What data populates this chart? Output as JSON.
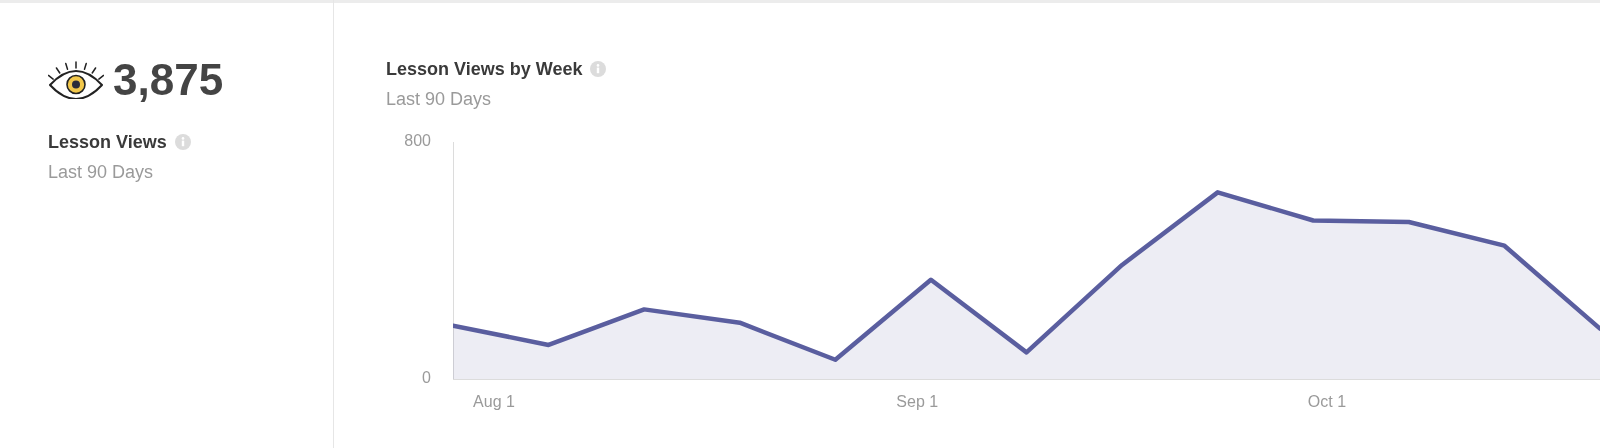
{
  "chart_data": [
    {
      "type": "other",
      "title": "Lesson Views",
      "subtitle": "Last 90 Days",
      "annotations": [
        "3,875"
      ]
    },
    {
      "type": "area",
      "title": "Lesson Views by Week",
      "subtitle": "Last 90 Days",
      "x": [
        "--07-29",
        "--08-05",
        "--08-12",
        "--08-19",
        "--08-26",
        "--09-02",
        "--09-09",
        "--09-16",
        "--09-23",
        "--09-30",
        "--10-07",
        "--10-14",
        "--10-21"
      ],
      "series": [
        {
          "color": "#5a5e9f",
          "values": [
            180,
            115,
            235,
            190,
            65,
            335,
            90,
            385,
            630,
            535,
            530,
            450,
            170
          ]
        }
      ],
      "xlim": [
        "--07-29",
        "--10-21"
      ],
      "xticks": [
        {
          "value": "--08-01",
          "label": "Aug 1"
        },
        {
          "value": "--09-01",
          "label": "Sep 1"
        },
        {
          "value": "--10-01",
          "label": "Oct 1"
        }
      ],
      "ylim": [
        0,
        800
      ],
      "yticks": [
        0,
        800
      ],
      "grid": false
    }
  ]
}
